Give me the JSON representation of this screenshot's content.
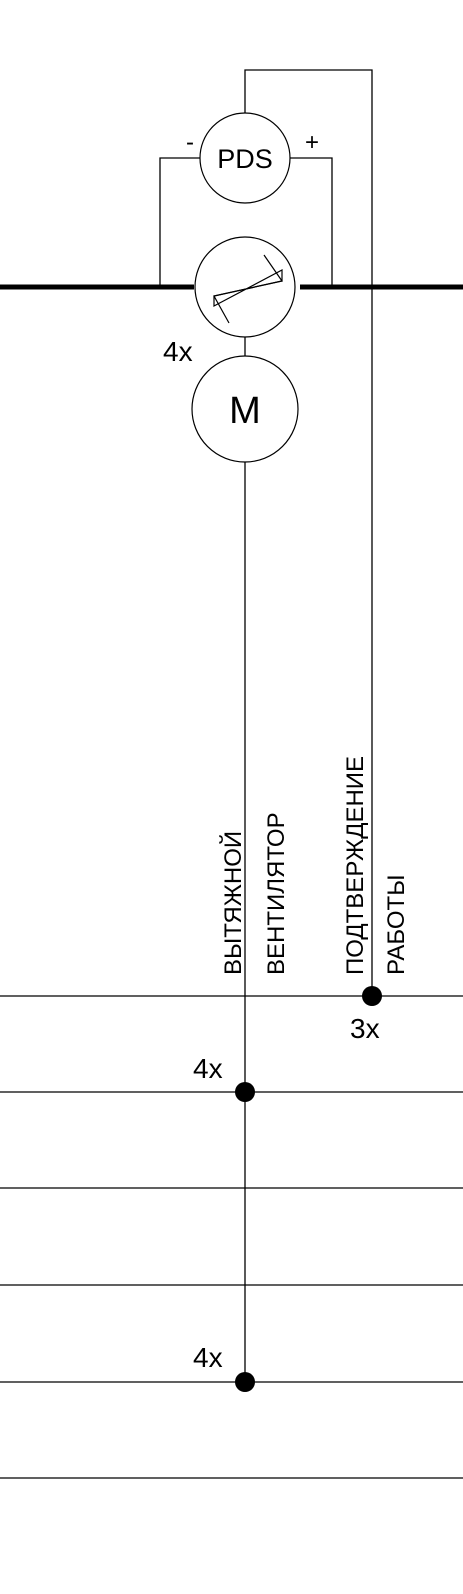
{
  "sensor": {
    "label": "PDS",
    "minus": "-",
    "plus": "+"
  },
  "damper": {
    "multiplier": "4x"
  },
  "motor": {
    "label": "M"
  },
  "signals": {
    "fan_line1": "ВЫТЯЖНОЙ",
    "fan_line2": "ВЕНТИЛЯТОР",
    "confirm_line1": "ПОДТВЕРЖДЕНИЕ",
    "confirm_line2": "РАБОТЫ"
  },
  "bus_connections": {
    "confirm_multiplier": "3x",
    "fan_multiplier_1": "4x",
    "fan_multiplier_2": "4x"
  },
  "colors": {
    "line": "#000000",
    "background": "#ffffff"
  }
}
